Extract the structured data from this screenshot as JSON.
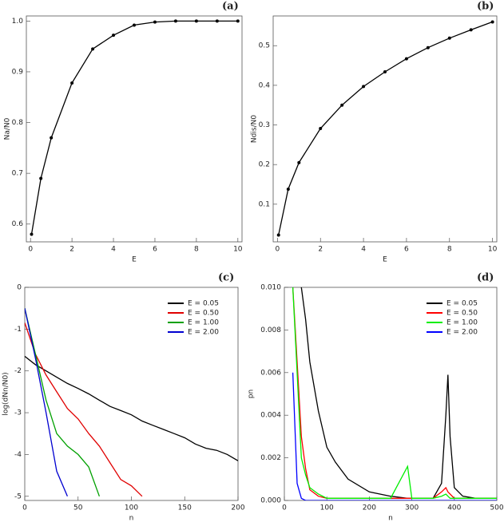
{
  "chart_data": [
    {
      "type": "line",
      "title": "(a)",
      "x_label": "E",
      "y_label": "Na/N0",
      "markers": true,
      "color": "#000000",
      "x": [
        0.05,
        0.5,
        1,
        2,
        3,
        4,
        5,
        6,
        7,
        8,
        9,
        10
      ],
      "values": [
        0.58,
        0.69,
        0.77,
        0.878,
        0.945,
        0.972,
        0.992,
        0.998,
        1.0,
        1.0,
        1.0,
        1.0
      ],
      "xlim": [
        -0.2,
        10.2
      ],
      "ylim": [
        0.565,
        1.01
      ],
      "xticks": [
        0,
        2,
        4,
        6,
        8,
        10
      ],
      "yticks": [
        0.6,
        0.7,
        0.8,
        0.9,
        {
          "value": 1,
          "label": "1.0"
        }
      ]
    },
    {
      "type": "line",
      "title": "(b)",
      "x_label": "E",
      "y_label": "Ndis/N0",
      "markers": true,
      "color": "#000000",
      "x": [
        0.05,
        0.5,
        1,
        2,
        3,
        4,
        5,
        6,
        7,
        8,
        9,
        10
      ],
      "values": [
        0.022,
        0.138,
        0.205,
        0.291,
        0.35,
        0.397,
        0.434,
        0.467,
        0.495,
        0.519,
        0.54,
        0.56
      ],
      "xlim": [
        -0.2,
        10.2
      ],
      "ylim": [
        0.005,
        0.575
      ],
      "xticks": [
        0,
        2,
        4,
        6,
        8,
        10
      ],
      "yticks": [
        0.1,
        0.2,
        0.3,
        0.4,
        0.5
      ]
    },
    {
      "type": "line",
      "title": "(c)",
      "x_label": "n",
      "y_label": "log(dNn/N0)",
      "legend": "upper right",
      "x": [
        0,
        10,
        20,
        30,
        40,
        50,
        60,
        70,
        80,
        90,
        100,
        110,
        120,
        130,
        140,
        150,
        160,
        170,
        180,
        190,
        200
      ],
      "series": [
        {
          "name": "E = 0.05",
          "color": "#000000",
          "values": [
            -1.65,
            -1.85,
            -2.0,
            -2.15,
            -2.3,
            -2.42,
            -2.55,
            -2.7,
            -2.85,
            -2.95,
            -3.05,
            -3.2,
            -3.3,
            -3.4,
            -3.5,
            -3.6,
            -3.75,
            -3.85,
            -3.9,
            -4.0,
            -4.15
          ]
        },
        {
          "name": "E = 0.50",
          "color": "#e00000",
          "values": [
            -0.85,
            -1.6,
            -2.1,
            -2.5,
            -2.9,
            -3.15,
            -3.5,
            -3.8,
            -4.2,
            -4.6,
            -4.75,
            -5.0,
            null,
            null,
            null,
            null,
            null,
            null,
            null,
            null,
            null
          ]
        },
        {
          "name": "E = 1.00",
          "color": "#00a000",
          "values": [
            -0.5,
            -1.6,
            -2.7,
            -3.5,
            -3.8,
            -4.0,
            -4.3,
            -5.0,
            null,
            null,
            null,
            null,
            null,
            null,
            null,
            null,
            null,
            null,
            null,
            null,
            null
          ]
        },
        {
          "name": "E = 2.00",
          "color": "#0000d0",
          "values": [
            -0.5,
            -1.7,
            -3.0,
            -4.4,
            -5.0,
            null,
            null,
            null,
            null,
            null,
            null,
            null,
            null,
            null,
            null,
            null,
            null,
            null,
            null,
            null,
            null
          ]
        }
      ],
      "xlim": [
        0,
        200
      ],
      "ylim": [
        -5.1,
        0
      ],
      "xticks": [
        0,
        50,
        100,
        150,
        200
      ],
      "yticks": [
        -5,
        -4,
        -3,
        -2,
        -1,
        0
      ]
    },
    {
      "type": "line",
      "title": "(d)",
      "x_label": "n",
      "y_label": "pn",
      "legend": "upper right",
      "x": [
        20,
        30,
        40,
        50,
        60,
        80,
        100,
        120,
        150,
        200,
        250,
        290,
        300,
        350,
        370,
        380,
        385,
        390,
        400,
        420,
        450,
        500
      ],
      "series": [
        {
          "name": "E = 0.05",
          "color": "#000000",
          "values": [
            null,
            null,
            0.01,
            0.0085,
            0.0065,
            0.0042,
            0.0025,
            0.0018,
            0.001,
            0.0004,
            0.0002,
            0.0001,
            0.0001,
            0.0001,
            0.0008,
            0.004,
            0.0059,
            0.003,
            0.0006,
            0.0002,
            0.0001,
            0.0001
          ]
        },
        {
          "name": "E = 0.50",
          "color": "#ff0000",
          "values": [
            0.01,
            0.0065,
            0.003,
            0.0015,
            0.0005,
            0.0002,
            0.0001,
            0.0001,
            0.0001,
            0.0001,
            0.0001,
            0.0001,
            0.0001,
            0.0001,
            0.0004,
            0.0006,
            0.0004,
            0.0003,
            0.0001,
            0.0001,
            0.0001,
            0.0001
          ]
        },
        {
          "name": "E = 1.00",
          "color": "#00ee00",
          "values": [
            0.01,
            0.006,
            0.002,
            0.0012,
            0.0006,
            0.0003,
            0.0001,
            0.0001,
            0.0001,
            0.0001,
            0.0001,
            0.0016,
            0.0001,
            0.0001,
            0.0002,
            0.0003,
            0.0002,
            0.0001,
            0.0001,
            0.0001,
            0.0001,
            0.0001
          ]
        },
        {
          "name": "E = 2.00",
          "color": "#0000ff",
          "values": [
            0.006,
            0.0008,
            0.0001,
            0,
            0,
            0,
            0,
            0,
            0,
            0,
            0,
            0,
            0,
            0,
            0,
            0,
            0,
            0,
            0,
            0,
            0,
            0
          ]
        }
      ],
      "xlim": [
        0,
        500
      ],
      "ylim": [
        0,
        0.01
      ],
      "xticks": [
        0,
        100,
        200,
        300,
        400,
        500
      ],
      "yticks": [
        {
          "value": 0,
          "label": "0.000"
        },
        {
          "value": 0.002,
          "label": "0.002"
        },
        {
          "value": 0.004,
          "label": "0.004"
        },
        {
          "value": 0.006,
          "label": "0.006"
        },
        {
          "value": 0.008,
          "label": "0.008"
        },
        {
          "value": 0.01,
          "label": "0.010"
        }
      ]
    }
  ]
}
